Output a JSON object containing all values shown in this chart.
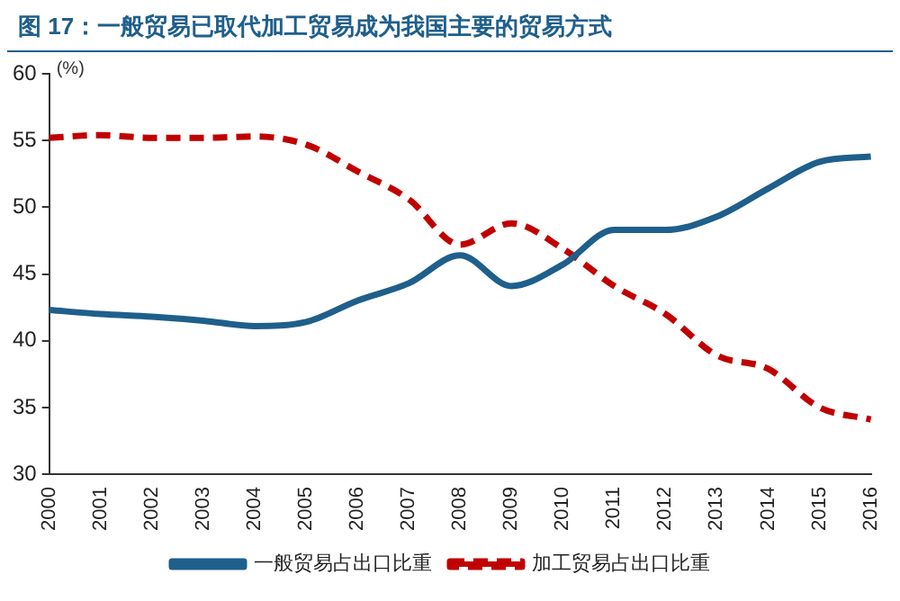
{
  "chart_data": {
    "type": "line",
    "title": "图 17：一般贸易已取代加工贸易成为我国主要的贸易方式",
    "ylabel": "(%)",
    "categories": [
      "2000",
      "2001",
      "2002",
      "2003",
      "2004",
      "2005",
      "2006",
      "2007",
      "2008",
      "2009",
      "2010",
      "2011",
      "2012",
      "2013",
      "2014",
      "2015",
      "2016"
    ],
    "series": [
      {
        "name": "一般贸易占出口比重",
        "color": "#1f5f8b",
        "line_style": "solid",
        "values": [
          42.3,
          42.0,
          41.8,
          41.5,
          41.1,
          41.4,
          43.0,
          44.3,
          46.4,
          44.1,
          45.7,
          48.3,
          48.3,
          49.3,
          51.4,
          53.4,
          53.8
        ]
      },
      {
        "name": "加工贸易占出口比重",
        "color": "#c00000",
        "line_style": "dashed",
        "values": [
          55.2,
          55.4,
          55.2,
          55.2,
          55.3,
          54.7,
          52.7,
          50.6,
          47.2,
          48.8,
          46.9,
          44.1,
          42.0,
          38.9,
          37.9,
          35.0,
          34.1
        ]
      }
    ],
    "ylim": [
      30,
      60
    ],
    "yticks": [
      30,
      35,
      40,
      45,
      50,
      55,
      60
    ],
    "grid": false,
    "legend": "bottom",
    "marker": "none"
  }
}
